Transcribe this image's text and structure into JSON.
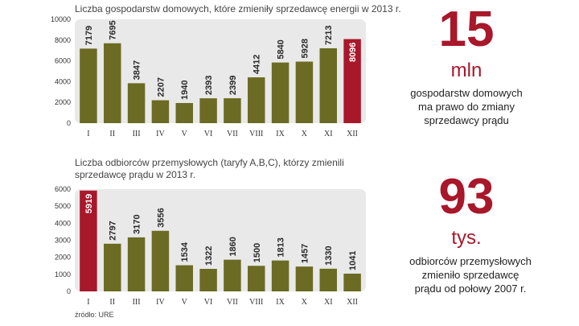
{
  "chart_data": [
    {
      "type": "bar",
      "title": "Liczba gospodarstw domowych, które zmieniły sprzedawcę energii w 2013 r.",
      "categories": [
        "I",
        "II",
        "III",
        "IV",
        "V",
        "VI",
        "VII",
        "VIII",
        "IX",
        "X",
        "XI",
        "XII"
      ],
      "values": [
        7179,
        7695,
        3847,
        2207,
        1940,
        2393,
        2399,
        4412,
        5840,
        5928,
        7213,
        8096
      ],
      "highlight_index": 11,
      "yticks": [
        0,
        2000,
        4000,
        6000,
        8000,
        10000
      ],
      "ylim": [
        0,
        10000
      ],
      "xlabel": "",
      "ylabel": ""
    },
    {
      "type": "bar",
      "title_lines": [
        "Liczba odbiorców przemysłowych (taryfy A,B,C), którzy zmienili",
        "sprzedawcę prądu w 2013 r."
      ],
      "categories": [
        "I",
        "II",
        "III",
        "IV",
        "V",
        "VI",
        "VII",
        "VIII",
        "IX",
        "X",
        "XI",
        "XII"
      ],
      "values": [
        5919,
        2797,
        3170,
        3556,
        1534,
        1322,
        1860,
        1500,
        1813,
        1457,
        1330,
        1041
      ],
      "highlight_index": 0,
      "yticks": [
        0,
        1000,
        2000,
        3000,
        4000,
        5000,
        6000
      ],
      "ylim": [
        0,
        6000
      ],
      "xlabel": "",
      "ylabel": ""
    }
  ],
  "colors": {
    "bar": "#6b6b24",
    "highlight": "#a8172a",
    "panel": "#e9e9e9",
    "bar_label": "#2a2a2a"
  },
  "stats": [
    {
      "number": "15",
      "unit": "mln",
      "lines": [
        "gospodarstw domowych",
        "ma prawo do zmiany",
        "sprzedawcy prądu"
      ]
    },
    {
      "number": "93",
      "unit": "tys.",
      "lines": [
        "odbiorców przemysłowych",
        "zmieniło sprzedawcę",
        "prądu od połowy 2007 r."
      ]
    }
  ],
  "source": "źródło: URE"
}
